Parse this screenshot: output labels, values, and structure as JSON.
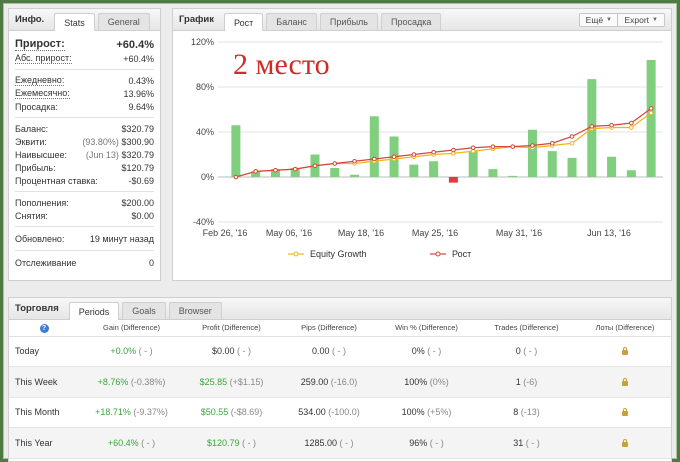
{
  "info": {
    "title": "Инфо.",
    "tabs": [
      {
        "label": "Stats"
      },
      {
        "label": "General"
      }
    ],
    "gain": {
      "label": "Прирост:",
      "value": "+60.4%"
    },
    "abs_gain": {
      "label": "Абс. прирост:",
      "value": "+60.4%"
    },
    "daily": {
      "label": "Ежедневно:",
      "value": "0.43%"
    },
    "monthly": {
      "label": "Ежемесячно:",
      "value": "13.96%"
    },
    "drawdown": {
      "label": "Просадка:",
      "value": "9.64%"
    },
    "balance": {
      "label": "Баланс:",
      "value": "$320.79"
    },
    "equity": {
      "label": "Эквити:",
      "note": "(93.80%)",
      "value": "$300.90"
    },
    "highest": {
      "label": "Наивысшее:",
      "note": "(Jun 13)",
      "value": "$320.79"
    },
    "profit": {
      "label": "Прибыль:",
      "value": "$120.79"
    },
    "interest": {
      "label": "Процентная ставка:",
      "value": "-$0.69"
    },
    "deposits": {
      "label": "Пополнения:",
      "value": "$200.00"
    },
    "withdrawals": {
      "label": "Снятия:",
      "value": "$0.00"
    },
    "updated": {
      "label": "Обновлено:",
      "value": "19 минут назад"
    },
    "tracking": {
      "label": "Отслеживание",
      "value": "0"
    }
  },
  "chart_panel": {
    "title": "График",
    "tabs": [
      {
        "label": "Рост"
      },
      {
        "label": "Баланс"
      },
      {
        "label": "Прибыль"
      },
      {
        "label": "Просадка"
      }
    ],
    "more_button": "Ещё",
    "export_button": "Export",
    "overlay_text": "2 место",
    "colors": {
      "bar_pos": "#7fcf7f",
      "bar_neg": "#e03c3c",
      "equity": "#f0b41e",
      "growth": "#d8453a"
    }
  },
  "chart_data": {
    "type": "bar",
    "y_ticks": [
      "120%",
      "80%",
      "40%",
      "0%",
      "-40%"
    ],
    "ylim": [
      -40,
      120
    ],
    "x_ticks": [
      "Feb 26, '16",
      "May 06, '16",
      "May 18, '16",
      "May 25, '16",
      "May 31, '16",
      "Jun 13, '16"
    ],
    "legend_position": "bottom",
    "bars": [
      46,
      5,
      7,
      8,
      20,
      8,
      2,
      54,
      36,
      11,
      14,
      -5,
      23,
      7,
      1,
      42,
      23,
      17,
      87,
      18,
      6,
      104
    ],
    "series": [
      {
        "name": "Equity Growth",
        "values": [
          0,
          5,
          6,
          7,
          10,
          12,
          12,
          14,
          16,
          18,
          20,
          21,
          23,
          25,
          27,
          26,
          28,
          30,
          43,
          44,
          44,
          57
        ]
      },
      {
        "name": "Рост",
        "values": [
          0,
          5,
          6,
          7,
          10,
          12,
          14,
          16,
          18,
          20,
          22,
          24,
          26,
          27,
          27,
          28,
          30,
          36,
          45,
          46,
          48,
          61
        ]
      }
    ]
  },
  "trade": {
    "title": "Торговля",
    "tabs": [
      {
        "label": "Periods"
      },
      {
        "label": "Goals"
      },
      {
        "label": "Browser"
      }
    ],
    "help_icon": "?",
    "columns": [
      "Gain (Difference)",
      "Profit (Difference)",
      "Pips (Difference)",
      "Win % (Difference)",
      "Trades (Difference)",
      "Лоты (Difference)"
    ],
    "rows": [
      {
        "period": "Today",
        "gain": "+0.0%",
        "gain_d": "( - )",
        "profit": "$0.00",
        "profit_d": "( - )",
        "pips": "0.00",
        "pips_d": "( - )",
        "win": "0%",
        "win_d": "( - )",
        "trades": "0",
        "trades_d": "( - )"
      },
      {
        "period": "This Week",
        "gain": "+8.76%",
        "gain_d": "(-0.38%)",
        "profit": "$25.85",
        "profit_d": "(+$1.15)",
        "pips": "259.00",
        "pips_d": "(-16.0)",
        "win": "100%",
        "win_d": "(0%)",
        "trades": "1",
        "trades_d": "(-6)"
      },
      {
        "period": "This Month",
        "gain": "+18.71%",
        "gain_d": "(-9.37%)",
        "profit": "$50.55",
        "profit_d": "(-$8.69)",
        "pips": "534.00",
        "pips_d": "(-100.0)",
        "win": "100%",
        "win_d": "(+5%)",
        "trades": "8",
        "trades_d": "(-13)"
      },
      {
        "period": "This Year",
        "gain": "+60.4%",
        "gain_d": "( - )",
        "profit": "$120.79",
        "profit_d": "( - )",
        "pips": "1285.00",
        "pips_d": "( - )",
        "win": "96%",
        "win_d": "( - )",
        "trades": "31",
        "trades_d": "( - )"
      }
    ]
  }
}
